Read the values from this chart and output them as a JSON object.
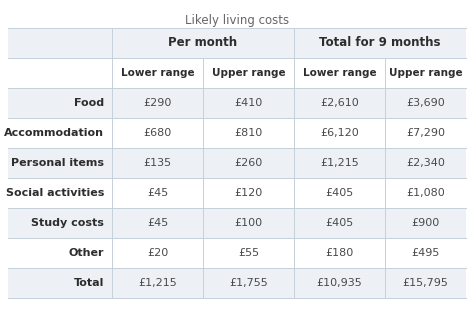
{
  "title": "Likely living costs",
  "rows": [
    [
      "Food",
      "£290",
      "£410",
      "£2,610",
      "£3,690"
    ],
    [
      "Accommodation",
      "£680",
      "£810",
      "£6,120",
      "£7,290"
    ],
    [
      "Personal items",
      "£135",
      "£260",
      "£1,215",
      "£2,340"
    ],
    [
      "Social activities",
      "£45",
      "£120",
      "£405",
      "£1,080"
    ],
    [
      "Study costs",
      "£45",
      "£100",
      "£405",
      "£900"
    ],
    [
      "Other",
      "£20",
      "£55",
      "£180",
      "£495"
    ],
    [
      "Total",
      "£1,215",
      "£1,755",
      "£10,935",
      "£15,795"
    ]
  ],
  "bg_light": "#edf1f5",
  "bg_white": "#ffffff",
  "line_color": "#c5d0da",
  "text_dark": "#2d2d2d",
  "text_mid": "#4a4a4a",
  "title_color": "#666666",
  "figsize": [
    4.74,
    3.32
  ],
  "dpi": 100
}
